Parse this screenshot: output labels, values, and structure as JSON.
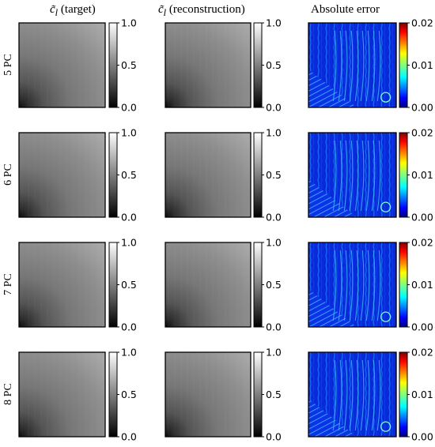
{
  "column_titles": [
    {
      "math": "c̃",
      "sub": "l",
      "text": " (target)"
    },
    {
      "math": "c̃",
      "sub": "l",
      "text": " (reconstruction)"
    },
    {
      "math": "",
      "sub": "",
      "text": "Absolute error"
    }
  ],
  "row_labels": [
    "5 PC",
    "6 PC",
    "7 PC",
    "8 PC"
  ],
  "colorbars": {
    "gray": {
      "ticks": [
        "1.0",
        "0.5",
        "0.0"
      ],
      "range": [
        0.0,
        1.0
      ],
      "colormap": "gray"
    },
    "error": {
      "ticks": [
        "0.02",
        "0.01",
        "0.00"
      ],
      "range": [
        0.0,
        0.02
      ],
      "colormap": "jet"
    }
  },
  "colors": {
    "frame": "#000000",
    "background": "#ffffff"
  },
  "chart_data": {
    "type": "heatmap",
    "panels": [
      {
        "row": "5 PC",
        "target_range": [
          0.0,
          1.0
        ],
        "reconstruction_range": [
          0.0,
          1.0
        ],
        "error_range": [
          0.0,
          0.02
        ]
      },
      {
        "row": "6 PC",
        "target_range": [
          0.0,
          1.0
        ],
        "reconstruction_range": [
          0.0,
          1.0
        ],
        "error_range": [
          0.0,
          0.02
        ]
      },
      {
        "row": "7 PC",
        "target_range": [
          0.0,
          1.0
        ],
        "reconstruction_range": [
          0.0,
          1.0
        ],
        "error_range": [
          0.0,
          0.02
        ]
      },
      {
        "row": "8 PC",
        "target_range": [
          0.0,
          1.0
        ],
        "reconstruction_range": [
          0.0,
          1.0
        ],
        "error_range": [
          0.0,
          0.02
        ]
      }
    ]
  }
}
